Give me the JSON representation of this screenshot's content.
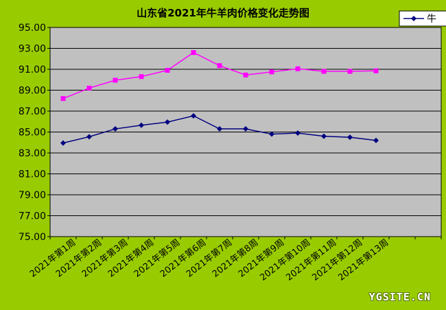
{
  "chart_data": {
    "type": "line",
    "title": "山东省2021年牛羊肉价格变化走势图",
    "categories": [
      "2021年第1周",
      "2021年第2周",
      "2021年第3周",
      "2021年第4周",
      "2021年第5周",
      "2021年第6周",
      "2021年第7周",
      "2021年第8周",
      "2021年第9周",
      "2021年第10周",
      "2021年第11周",
      "2021年第12周",
      "2021年第13周"
    ],
    "series": [
      {
        "name": "牛",
        "color": "#000080",
        "marker": "diamond",
        "values": [
          83.95,
          84.55,
          85.3,
          85.65,
          85.95,
          86.55,
          85.3,
          85.3,
          84.8,
          84.9,
          84.6,
          84.5,
          84.2
        ]
      },
      {
        "color": "#ff00ff",
        "marker": "square",
        "values": [
          88.2,
          89.2,
          89.95,
          90.3,
          90.9,
          92.6,
          91.35,
          90.45,
          90.75,
          91.05,
          90.8,
          90.8,
          90.85
        ]
      }
    ],
    "ylim": [
      75,
      95
    ],
    "yticks": [
      "75.00",
      "77.00",
      "79.00",
      "81.00",
      "83.00",
      "85.00",
      "87.00",
      "89.00",
      "91.00",
      "93.00",
      "95.00"
    ],
    "grid": true,
    "legend": "top-right",
    "plot_background": "#c0c0c0",
    "page_background": "#99cc00"
  },
  "watermark": "YGSITE.CN"
}
